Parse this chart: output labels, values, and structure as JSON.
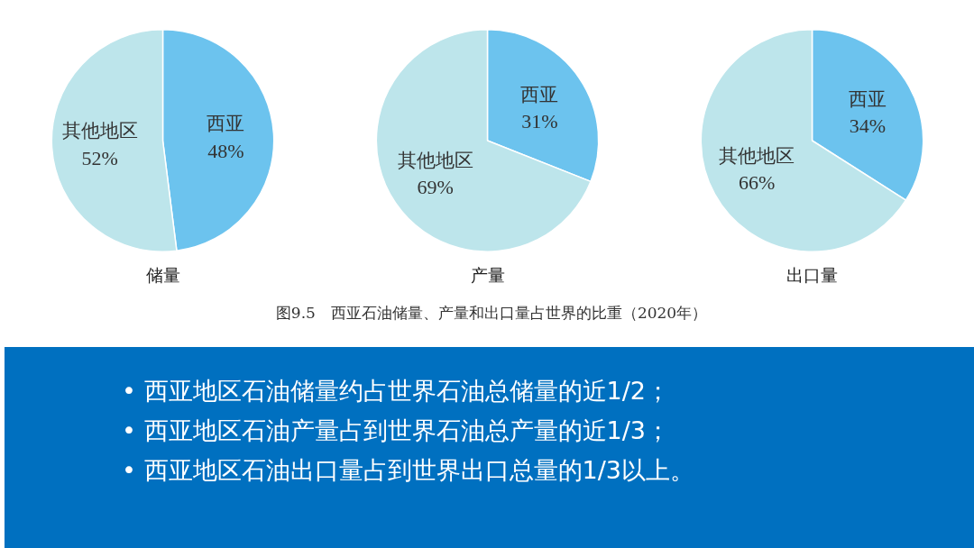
{
  "chart_data": [
    {
      "type": "pie",
      "title": "储量",
      "categories": [
        "西亚",
        "其他地区"
      ],
      "values": [
        48,
        52
      ],
      "value_labels": [
        "48%",
        "52%"
      ],
      "colors": [
        "#6cc3ee",
        "#bde5eb"
      ]
    },
    {
      "type": "pie",
      "title": "产量",
      "categories": [
        "西亚",
        "其他地区"
      ],
      "values": [
        31,
        69
      ],
      "value_labels": [
        "31%",
        "69%"
      ],
      "colors": [
        "#6cc3ee",
        "#bde5eb"
      ]
    },
    {
      "type": "pie",
      "title": "出口量",
      "categories": [
        "西亚",
        "其他地区"
      ],
      "values": [
        34,
        66
      ],
      "value_labels": [
        "34%",
        "66%"
      ],
      "colors": [
        "#6cc3ee",
        "#bde5eb"
      ]
    },
    {
      "type": "other",
      "title": "图9.5　西亚石油储量、产量和出口量占世界的比重（2020年）",
      "annotations": [
        "• 西亚地区石油储量约占世界石油总储量的近1/2；",
        "• 西亚地区石油产量占到世界石油总产量的近1/3；",
        "• 西亚地区石油出口量占到世界出口总量的1/3以上。"
      ]
    }
  ]
}
